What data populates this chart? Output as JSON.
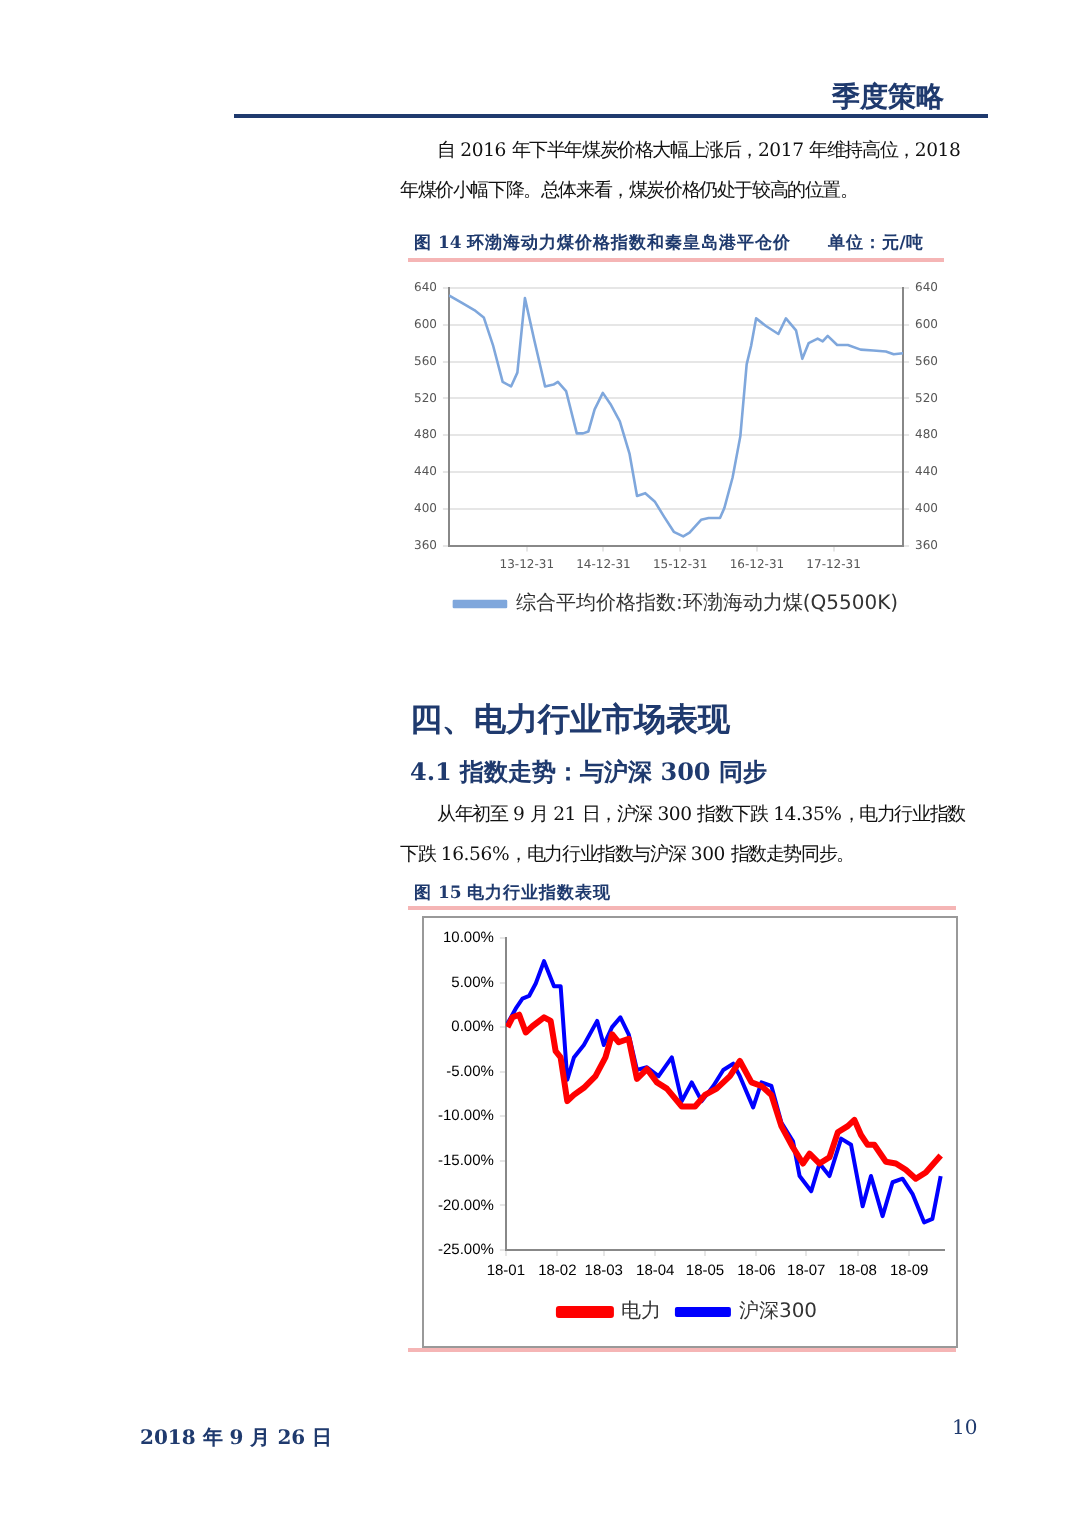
{
  "chart_data": [
    {
      "type": "line",
      "title": "图 14 环渤海动力煤价格指数和秦皇岛港平仓价",
      "subtitle": "单位：元/吨",
      "annotations": [
        "季度策略",
        "自 2016 年下半年煤炭价格大幅上涨后，2017 年维持高位，2018 年煤价小幅下降。总体来看，煤炭价格仍处于较高的位置。"
      ],
      "series": [
        {
          "name": "综合平均价格指数:环渤海动力煤(Q5500K)",
          "color": "#7fa7dc",
          "x": [
            "2012-12-25",
            "2013-02-23",
            "2013-04-25",
            "2013-06-09",
            "2013-07-24",
            "2013-09-07",
            "2013-10-17",
            "2013-11-16",
            "2013-12-22",
            "2014-02-05",
            "2014-03-28",
            "2014-05-07",
            "2014-05-28",
            "2014-07-06",
            "2014-08-26",
            "2014-09-25",
            "2014-10-20",
            "2014-11-19",
            "2014-12-28",
            "2015-02-02",
            "2015-03-19",
            "2015-05-04",
            "2015-06-09",
            "2015-07-18",
            "2015-09-01",
            "2015-10-17",
            "2015-12-01",
            "2016-01-15",
            "2016-02-14",
            "2016-04-09",
            "2016-05-15",
            "2016-07-08",
            "2016-07-29",
            "2016-09-06",
            "2016-10-13",
            "2016-11-12",
            "2016-12-03",
            "2016-12-27",
            "2017-02-10",
            "2017-04-12",
            "2017-05-18",
            "2017-07-05",
            "2017-08-04",
            "2017-09-03",
            "2017-10-16",
            "2017-11-09",
            "2017-12-03",
            "2018-01-17",
            "2018-03-09",
            "2018-05-09",
            "2018-07-08",
            "2018-09-06",
            "2018-10-13",
            "2018-11-27"
          ],
          "values": [
            632,
            624,
            616,
            608,
            577,
            538,
            533,
            548,
            629,
            583,
            533,
            535,
            538,
            528,
            482,
            482,
            484,
            508,
            526,
            514,
            495,
            460,
            414,
            417,
            408,
            391,
            375,
            370,
            374,
            388,
            390,
            390,
            401,
            434,
            479,
            557,
            577,
            607,
            599,
            590,
            607,
            594,
            563,
            580,
            585,
            582,
            588,
            578,
            578,
            573,
            572,
            571,
            568,
            569
          ]
        }
      ],
      "xlim": [
        "2012-12-25",
        "2018-11-27"
      ],
      "xticks": [
        {
          "value": "2013-12-31",
          "label": "13-12-31"
        },
        {
          "value": "2014-12-31",
          "label": "14-12-31"
        },
        {
          "value": "2015-12-31",
          "label": "15-12-31"
        },
        {
          "value": "2016-12-31",
          "label": "16-12-31"
        },
        {
          "value": "2017-12-31",
          "label": "17-12-31"
        }
      ],
      "ylim": [
        360,
        640
      ],
      "yticks": [
        360,
        400,
        440,
        480,
        520,
        560,
        600,
        640
      ],
      "y2lim": [
        360,
        640
      ],
      "y2ticks": [
        360,
        400,
        440,
        480,
        520,
        560,
        600,
        640
      ],
      "grid": "y",
      "legend": "bottom",
      "marker": "none",
      "line_style": "solid"
    },
    {
      "type": "line",
      "title": "图 15 电力行业指数表现",
      "annotations": [
        "四、电力行业市场表现",
        "4.1 指数走势：与沪深 300 同步",
        "从年初至 9 月 21 日，沪深 300 指数下跌 14.35%，电力行业指数下跌 16.56%，电力行业指数与沪深 300 指数走势同步。",
        "2018 年 9 月 26 日",
        "10"
      ],
      "series": [
        {
          "name": "电力",
          "color": "#ff0000",
          "x": [
            "2018-01-02",
            "2018-01-05",
            "2018-01-09",
            "2018-01-13",
            "2018-01-17",
            "2018-01-24",
            "2018-01-28",
            "2018-01-31",
            "2018-02-03",
            "2018-02-07",
            "2018-02-11",
            "2018-02-17",
            "2018-02-24",
            "2018-03-02",
            "2018-03-06",
            "2018-03-10",
            "2018-03-16",
            "2018-03-21",
            "2018-03-27",
            "2018-04-02",
            "2018-04-08",
            "2018-04-17",
            "2018-04-25",
            "2018-05-01",
            "2018-05-08",
            "2018-05-16",
            "2018-05-22",
            "2018-05-29",
            "2018-06-04",
            "2018-06-10",
            "2018-06-16",
            "2018-06-23",
            "2018-06-29",
            "2018-07-03",
            "2018-07-09",
            "2018-07-15",
            "2018-07-20",
            "2018-07-26",
            "2018-07-30",
            "2018-08-03",
            "2018-08-07",
            "2018-08-11",
            "2018-08-18",
            "2018-08-24",
            "2018-08-30",
            "2018-09-05",
            "2018-09-11",
            "2018-09-20"
          ],
          "values": [
            0,
            1.1,
            1.4,
            -0.6,
            0.1,
            1.1,
            0.7,
            -2.7,
            -3.4,
            -8.3,
            -7.6,
            -6.8,
            -5.5,
            -3.4,
            -0.8,
            -1.7,
            -1.3,
            -5.8,
            -4.7,
            -6.2,
            -6.9,
            -8.9,
            -8.9,
            -7.6,
            -6.9,
            -5.5,
            -3.8,
            -6.2,
            -6.6,
            -7.6,
            -11.1,
            -13.5,
            -15.3,
            -14.2,
            -15.3,
            -14.6,
            -11.8,
            -11.1,
            -10.4,
            -12.1,
            -13.2,
            -13.2,
            -15.1,
            -15.3,
            -16.0,
            -17.0,
            -16.3,
            -14.4
          ]
        },
        {
          "name": "沪深300",
          "color": "#0000ff",
          "x": [
            "2018-01-02",
            "2018-01-07",
            "2018-01-11",
            "2018-01-15",
            "2018-01-19",
            "2018-01-24",
            "2018-01-27",
            "2018-01-30",
            "2018-02-03",
            "2018-02-07",
            "2018-02-11",
            "2018-02-17",
            "2018-02-25",
            "2018-03-01",
            "2018-03-06",
            "2018-03-11",
            "2018-03-16",
            "2018-03-21",
            "2018-03-27",
            "2018-04-03",
            "2018-04-11",
            "2018-04-17",
            "2018-04-23",
            "2018-04-29",
            "2018-05-06",
            "2018-05-12",
            "2018-05-18",
            "2018-05-22",
            "2018-05-30",
            "2018-06-04",
            "2018-06-10",
            "2018-06-16",
            "2018-06-23",
            "2018-06-27",
            "2018-07-04",
            "2018-07-09",
            "2018-07-15",
            "2018-07-22",
            "2018-07-28",
            "2018-08-04",
            "2018-08-09",
            "2018-08-16",
            "2018-08-22",
            "2018-08-28",
            "2018-09-03",
            "2018-09-10",
            "2018-09-15",
            "2018-09-20"
          ],
          "values": [
            0.4,
            2.1,
            3.2,
            3.5,
            4.9,
            7.4,
            6.0,
            4.6,
            4.6,
            -5.9,
            -3.4,
            -2.0,
            0.7,
            -2.0,
            0.0,
            1.1,
            -0.8,
            -4.8,
            -4.5,
            -5.5,
            -3.4,
            -8.3,
            -6.2,
            -8.3,
            -6.6,
            -4.8,
            -4.1,
            -5.5,
            -9.0,
            -6.2,
            -6.6,
            -10.7,
            -12.8,
            -16.7,
            -18.4,
            -15.3,
            -16.7,
            -12.5,
            -13.2,
            -20.1,
            -16.7,
            -21.2,
            -17.4,
            -17.0,
            -18.7,
            -21.9,
            -21.5,
            -16.7
          ]
        }
      ],
      "xlim": [
        "2018-01-01",
        "2018-09-22"
      ],
      "xticks": [
        {
          "value": "2018-01-01",
          "label": "18-01"
        },
        {
          "value": "2018-02-01",
          "label": "18-02"
        },
        {
          "value": "2018-03-01",
          "label": "18-03"
        },
        {
          "value": "2018-04-01",
          "label": "18-04"
        },
        {
          "value": "2018-05-01",
          "label": "18-05"
        },
        {
          "value": "2018-06-01",
          "label": "18-06"
        },
        {
          "value": "2018-07-01",
          "label": "18-07"
        },
        {
          "value": "2018-08-01",
          "label": "18-08"
        },
        {
          "value": "2018-09-01",
          "label": "18-09"
        }
      ],
      "ylim": [
        -25,
        10
      ],
      "yticks": [
        {
          "value": -25,
          "label": "-25.00%"
        },
        {
          "value": -20,
          "label": "-20.00%"
        },
        {
          "value": -15,
          "label": "-15.00%"
        },
        {
          "value": -10,
          "label": "-10.00%"
        },
        {
          "value": -5,
          "label": "-5.00%"
        },
        {
          "value": 0,
          "label": "0.00%"
        },
        {
          "value": 5,
          "label": "5.00%"
        },
        {
          "value": 10,
          "label": "10.00%"
        }
      ],
      "grid": false,
      "legend": "bottom",
      "marker": "none",
      "line_style": "solid"
    }
  ]
}
